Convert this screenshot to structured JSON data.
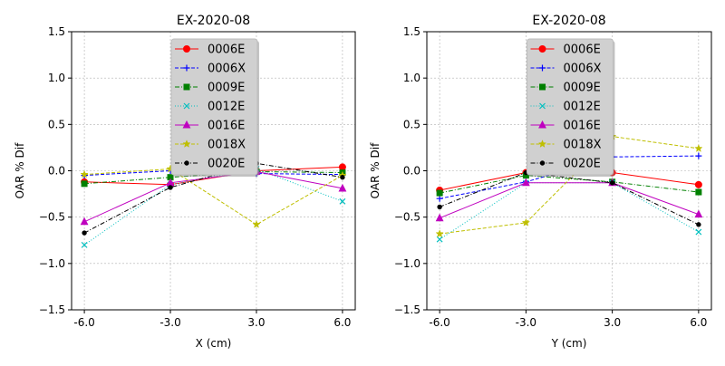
{
  "chart_data": [
    {
      "type": "line",
      "title": "EX-2020-08",
      "xlabel": "X (cm)",
      "ylabel": "OAR % Dif",
      "x": [
        -6.0,
        -3.0,
        3.0,
        6.0
      ],
      "x_tick_labels": [
        "-6.0",
        "-3.0",
        "3.0",
        "6.0"
      ],
      "ylim": [
        -1.5,
        1.5
      ],
      "y_ticks": [
        -1.5,
        -1.0,
        -0.5,
        0.0,
        0.5,
        1.0,
        1.5
      ],
      "y_tick_labels": [
        "−1.5",
        "−1.0",
        "−0.5",
        "0.0",
        "0.5",
        "1.0",
        "1.5"
      ],
      "grid": true,
      "legend_position": "upper-center",
      "series": [
        {
          "name": "0006E",
          "color": "#ff0000",
          "dash": "solid",
          "marker": "circle",
          "values": [
            -0.12,
            -0.15,
            0.0,
            0.04
          ]
        },
        {
          "name": "0006X",
          "color": "#0000ff",
          "dash": "dashed",
          "marker": "plus",
          "values": [
            -0.05,
            0.0,
            -0.03,
            -0.04
          ]
        },
        {
          "name": "0009E",
          "color": "#008000",
          "dash": "dashdot",
          "marker": "square",
          "values": [
            -0.14,
            -0.07,
            -0.01,
            -0.02
          ]
        },
        {
          "name": "0012E",
          "color": "#00bfbf",
          "dash": "dotted",
          "marker": "x",
          "values": [
            -0.8,
            -0.15,
            0.02,
            -0.33
          ]
        },
        {
          "name": "0016E",
          "color": "#bf00bf",
          "dash": "solid",
          "marker": "triangle",
          "values": [
            -0.55,
            -0.13,
            -0.01,
            -0.19
          ]
        },
        {
          "name": "0018X",
          "color": "#bfbf00",
          "dash": "dashed",
          "marker": "star",
          "values": [
            -0.04,
            0.02,
            -0.58,
            -0.05
          ]
        },
        {
          "name": "0020E",
          "color": "#000000",
          "dash": "dashdot",
          "marker": "dot",
          "values": [
            -0.67,
            -0.18,
            0.08,
            -0.07
          ]
        }
      ]
    },
    {
      "type": "line",
      "title": "EX-2020-08",
      "xlabel": "Y (cm)",
      "ylabel": "OAR % Dif",
      "x": [
        -6.0,
        -3.0,
        3.0,
        6.0
      ],
      "x_tick_labels": [
        "-6.0",
        "-3.0",
        "3.0",
        "6.0"
      ],
      "ylim": [
        -1.5,
        1.5
      ],
      "y_ticks": [
        -1.5,
        -1.0,
        -0.5,
        0.0,
        0.5,
        1.0,
        1.5
      ],
      "y_tick_labels": [
        "−1.5",
        "−1.0",
        "−0.5",
        "0.0",
        "0.5",
        "1.0",
        "1.5"
      ],
      "grid": true,
      "legend_position": "upper-center",
      "series": [
        {
          "name": "0006E",
          "color": "#ff0000",
          "dash": "solid",
          "marker": "circle",
          "values": [
            -0.21,
            -0.02,
            -0.02,
            -0.15
          ]
        },
        {
          "name": "0006X",
          "color": "#0000ff",
          "dash": "dashed",
          "marker": "plus",
          "values": [
            -0.3,
            -0.12,
            0.15,
            0.16
          ]
        },
        {
          "name": "0009E",
          "color": "#008000",
          "dash": "dashdot",
          "marker": "square",
          "values": [
            -0.24,
            -0.05,
            -0.12,
            -0.23
          ]
        },
        {
          "name": "0012E",
          "color": "#00bfbf",
          "dash": "dotted",
          "marker": "x",
          "values": [
            -0.74,
            -0.13,
            -0.13,
            -0.66
          ]
        },
        {
          "name": "0016E",
          "color": "#bf00bf",
          "dash": "solid",
          "marker": "triangle",
          "values": [
            -0.51,
            -0.13,
            -0.13,
            -0.47
          ]
        },
        {
          "name": "0018X",
          "color": "#bfbf00",
          "dash": "dashed",
          "marker": "star",
          "values": [
            -0.68,
            -0.56,
            0.37,
            0.24
          ]
        },
        {
          "name": "0020E",
          "color": "#000000",
          "dash": "dashdot",
          "marker": "dot",
          "values": [
            -0.39,
            -0.02,
            -0.13,
            -0.58
          ]
        }
      ]
    }
  ]
}
